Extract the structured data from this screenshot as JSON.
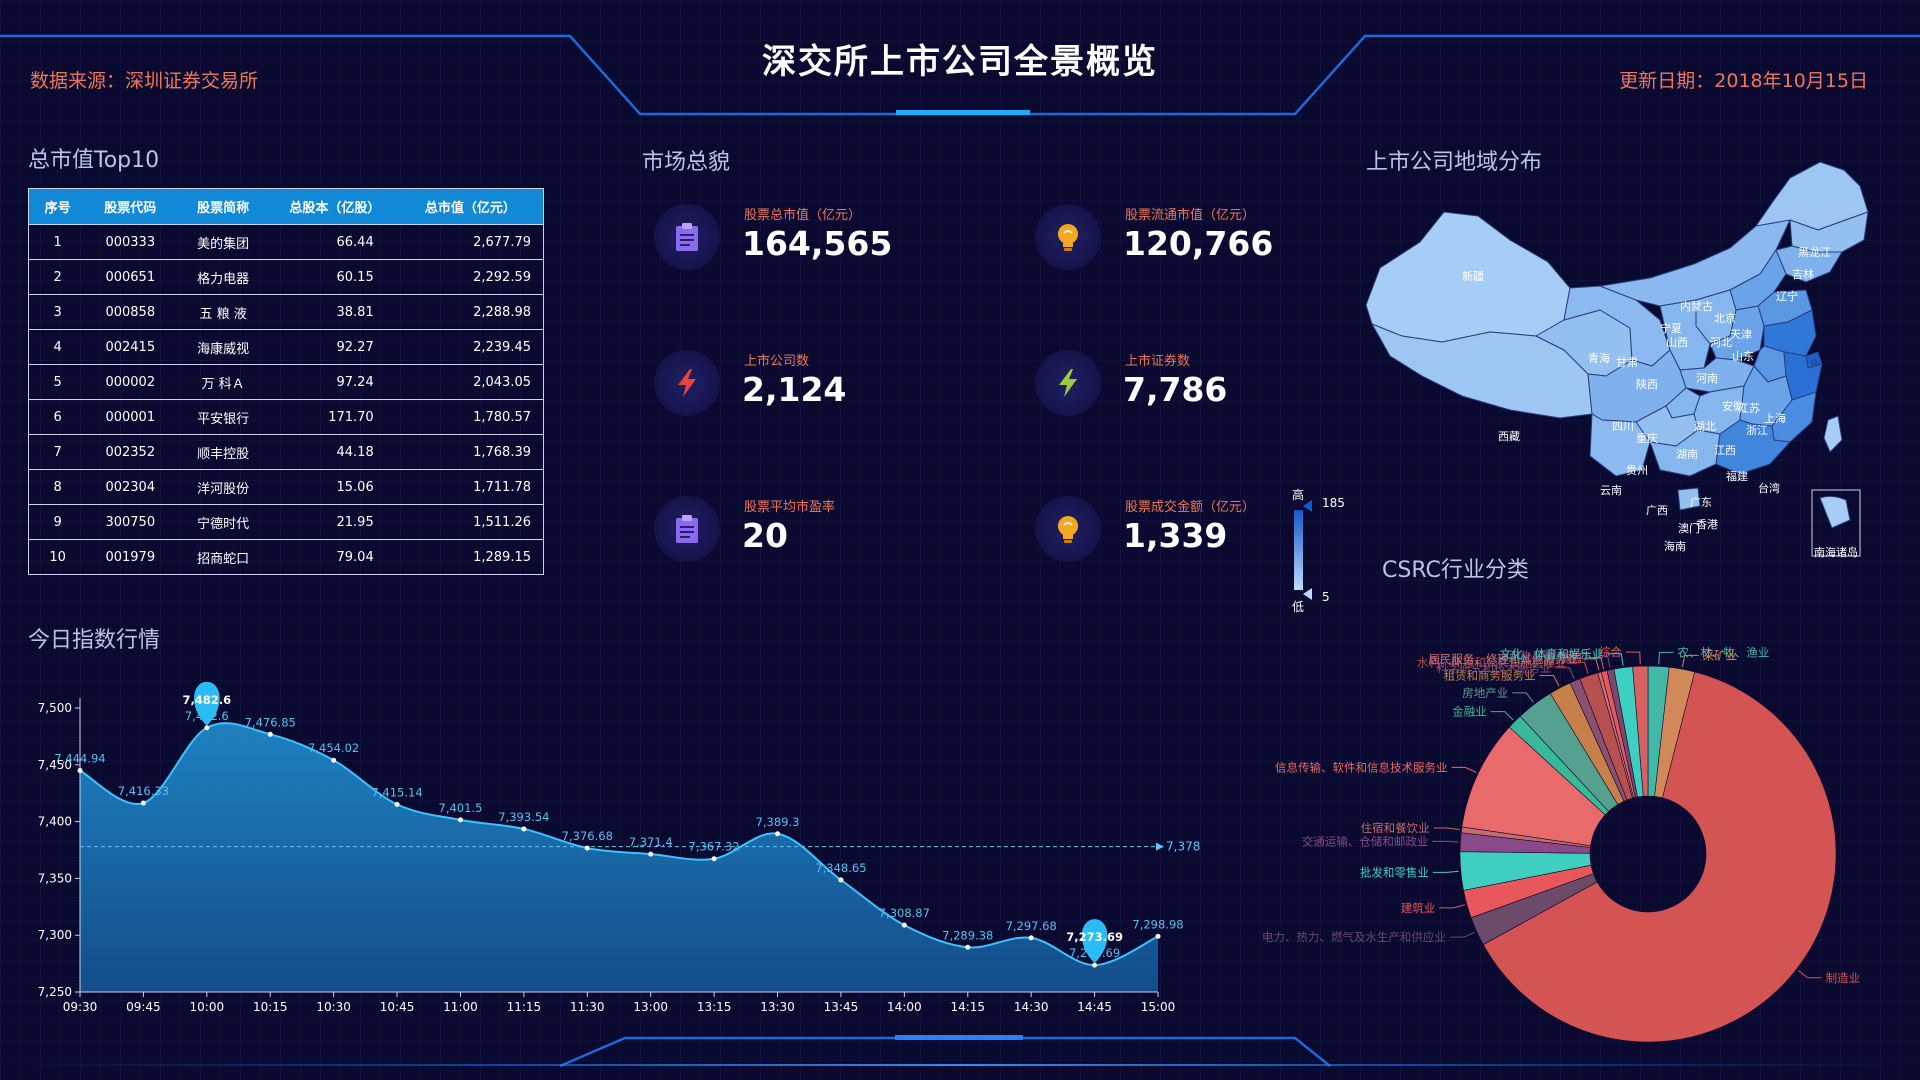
{
  "header": {
    "title": "深交所上市公司全景概览",
    "source": "数据来源：深圳证券交易所",
    "update": "更新日期：2018年10月15日"
  },
  "sections": {
    "top10": "总市值Top10",
    "market": "市场总貌",
    "geo": "上市公司地域分布",
    "industry": "CSRC行业分类",
    "index": "今日指数行情"
  },
  "table": {
    "headers": [
      "序号",
      "股票代码",
      "股票简称",
      "总股本（亿股）",
      "总市值（亿元）"
    ],
    "rows": [
      [
        "1",
        "000333",
        "美的集团",
        "66.44",
        "2,677.79"
      ],
      [
        "2",
        "000651",
        "格力电器",
        "60.15",
        "2,292.59"
      ],
      [
        "3",
        "000858",
        "五 粮 液",
        "38.81",
        "2,288.98"
      ],
      [
        "4",
        "002415",
        "海康威视",
        "92.27",
        "2,239.45"
      ],
      [
        "5",
        "000002",
        "万 科Ａ",
        "97.24",
        "2,043.05"
      ],
      [
        "6",
        "000001",
        "平安银行",
        "171.70",
        "1,780.57"
      ],
      [
        "7",
        "002352",
        "顺丰控股",
        "44.18",
        "1,768.39"
      ],
      [
        "8",
        "002304",
        "洋河股份",
        "15.06",
        "1,711.78"
      ],
      [
        "9",
        "300750",
        "宁德时代",
        "21.95",
        "1,511.26"
      ],
      [
        "10",
        "001979",
        "招商蛇口",
        "79.04",
        "1,289.15"
      ]
    ]
  },
  "kpis": [
    {
      "label": "股票总市值（亿元）",
      "value": "164,565",
      "icon": "clipboard-icon",
      "color": "#8b6cf0"
    },
    {
      "label": "股票流通市值（亿元）",
      "value": "120,766",
      "icon": "lightbulb-icon",
      "color": "#f5a623"
    },
    {
      "label": "上市公司数",
      "value": "2,124",
      "icon": "lightning-icon",
      "color": "#e8453c"
    },
    {
      "label": "上市证券数",
      "value": "7,786",
      "icon": "lightning-icon",
      "color": "#9ccc3c"
    },
    {
      "label": "股票平均市盈率",
      "value": "20",
      "icon": "clipboard-icon",
      "color": "#8b6cf0"
    },
    {
      "label": "股票成交金额（亿元）",
      "value": "1,339",
      "icon": "lightbulb-icon",
      "color": "#f5a623"
    }
  ],
  "map": {
    "visual_map": {
      "high_label": "高",
      "low_label": "低",
      "max": "185",
      "min": "5"
    },
    "provinces": [
      "新疆",
      "西藏",
      "青海",
      "甘肃",
      "宁夏",
      "内蒙古",
      "黑龙江",
      "吉林",
      "辽宁",
      "北京",
      "天津",
      "河北",
      "山西",
      "陕西",
      "山东",
      "河南",
      "四川",
      "重庆",
      "湖北",
      "安徽",
      "江苏",
      "上海",
      "浙江",
      "江西",
      "湖南",
      "贵州",
      "云南",
      "广西",
      "广东",
      "福建",
      "台湾",
      "香港",
      "澳门",
      "海南"
    ],
    "inset_label": "南海诸岛"
  },
  "chart_data": [
    {
      "type": "area",
      "x": [
        "09:30",
        "09:45",
        "10:00",
        "10:15",
        "10:30",
        "10:45",
        "11:00",
        "11:15",
        "11:30",
        "13:00",
        "13:15",
        "13:30",
        "13:45",
        "14:00",
        "14:15",
        "14:30",
        "14:45",
        "15:00"
      ],
      "values": [
        7444.94,
        7416.33,
        7482.6,
        7476.85,
        7454.02,
        7415.14,
        7401.5,
        7393.54,
        7376.68,
        7371.4,
        7367.32,
        7389.3,
        7348.65,
        7308.87,
        7289.38,
        7297.68,
        7273.69,
        7298.98
      ],
      "value_labels": [
        "7,444.94",
        "7,416.33",
        "7,482.6",
        "7,476.85",
        "7,454.02",
        "7,415.14",
        "7,401.5",
        "7,393.54",
        "7,376.68",
        "7,371.4",
        "7,367.32",
        "7,389.3",
        "7,348.65",
        "7,308.87",
        "7,289.38",
        "7,297.68",
        "7,273.69",
        "7,298.98"
      ],
      "y_ticks": [
        "7,250",
        "7,300",
        "7,350",
        "7,400",
        "7,450",
        "7,500"
      ],
      "ylim": [
        7250,
        7500
      ],
      "max_label": "7,482.6",
      "min_label": "7,273.69",
      "average": 7378,
      "average_label": "7,378",
      "color": "#1aa6e8"
    },
    {
      "type": "pie",
      "donut": true,
      "slices": [
        {
          "name": "农、林、牧、渔业",
          "value": 1.8,
          "color": "#43b8a8"
        },
        {
          "name": "采矿业",
          "value": 2.2,
          "color": "#d2895a"
        },
        {
          "name": "制造业",
          "value": 63,
          "color": "#d45454"
        },
        {
          "name": "电力、热力、燃气及水生产和供应业",
          "value": 2.5,
          "color": "#6b4a6a"
        },
        {
          "name": "建筑业",
          "value": 2.4,
          "color": "#e8585a"
        },
        {
          "name": "批发和零售业",
          "value": 3.3,
          "color": "#3fcfc0"
        },
        {
          "name": "交通运输、仓储和邮政业",
          "value": 1.6,
          "color": "#8a4a8a"
        },
        {
          "name": "住宿和餐饮业",
          "value": 0.5,
          "color": "#c86a6a"
        },
        {
          "name": "信息传输、软件和信息技术服务业",
          "value": 9.5,
          "color": "#e86a6a"
        },
        {
          "name": "金融业",
          "value": 1.3,
          "color": "#3ab89a"
        },
        {
          "name": "房地产业",
          "value": 3.2,
          "color": "#56a090"
        },
        {
          "name": "租赁和商务服务业",
          "value": 1.9,
          "color": "#c8804a"
        },
        {
          "name": "科学研究和技术服务业",
          "value": 0.9,
          "color": "#8a5070"
        },
        {
          "name": "水利、环境和公共设施管理业",
          "value": 1.6,
          "color": "#b85050"
        },
        {
          "name": "居民服务、修理和其他服务业",
          "value": 0.3,
          "color": "#d07070"
        },
        {
          "name": "教育",
          "value": 0.5,
          "color": "#e8585a"
        },
        {
          "name": "卫生和社会工作",
          "value": 0.6,
          "color": "#7a4a6a"
        },
        {
          "name": "文化、体育和娱乐业",
          "value": 1.6,
          "color": "#3fcfc0"
        },
        {
          "name": "综合",
          "value": 1.3,
          "color": "#d86060"
        }
      ]
    }
  ]
}
